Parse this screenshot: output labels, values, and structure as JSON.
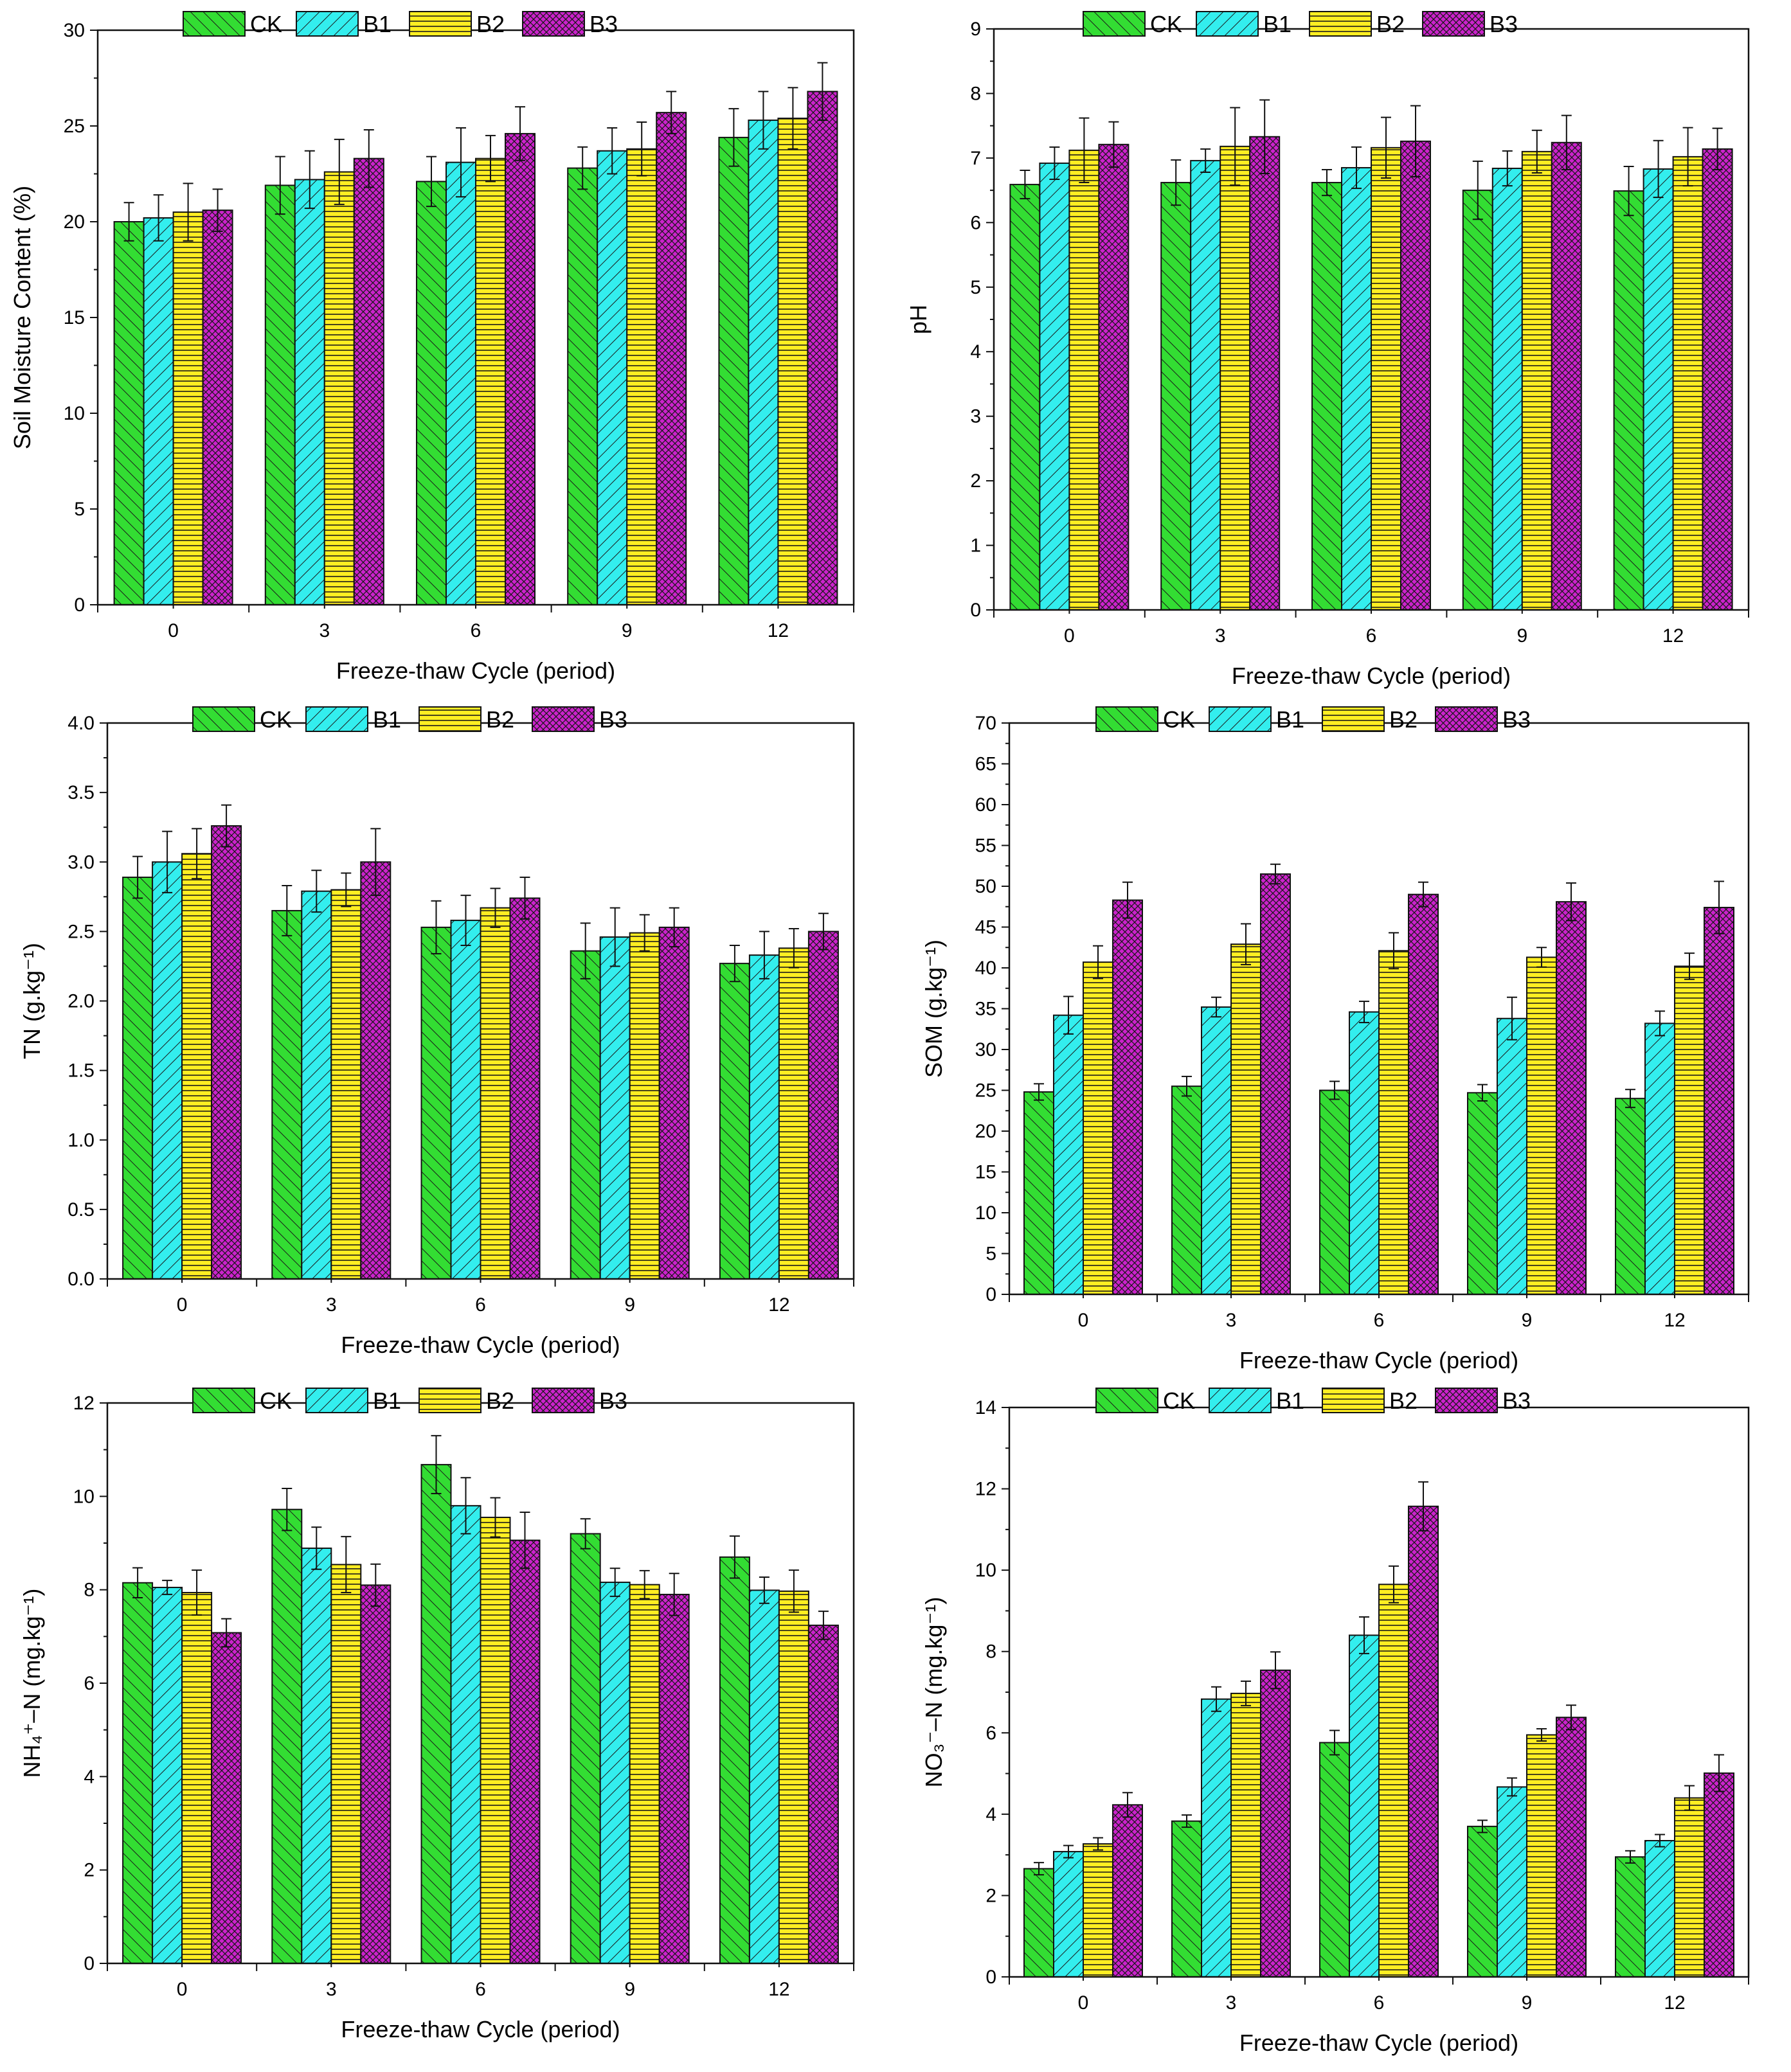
{
  "colors": {
    "CK": "#33dd33",
    "B1": "#33eeee",
    "B2": "#ffee22",
    "B3": "#cc22cc"
  },
  "chart_data": [
    {
      "type": "bar",
      "categories": [
        "0",
        "3",
        "6",
        "9",
        "12"
      ],
      "xlabel": "Freeze-thaw Cycle (period)",
      "ylabel": "Soil Moisture Content (%)",
      "ylim": [
        0,
        30
      ],
      "yticks": [
        "0",
        "5",
        "10",
        "15",
        "20",
        "25",
        "30"
      ],
      "legend": [
        "CK",
        "B1",
        "B2",
        "B3"
      ],
      "series": [
        {
          "name": "CK",
          "values": [
            20.0,
            21.9,
            22.1,
            22.8,
            24.4
          ],
          "errors": [
            1.0,
            1.5,
            1.3,
            1.1,
            1.5
          ]
        },
        {
          "name": "B1",
          "values": [
            20.2,
            22.2,
            23.1,
            23.7,
            25.3
          ],
          "errors": [
            1.2,
            1.5,
            1.8,
            1.2,
            1.5
          ]
        },
        {
          "name": "B2",
          "values": [
            20.5,
            22.6,
            23.3,
            23.8,
            25.4
          ],
          "errors": [
            1.5,
            1.7,
            1.2,
            1.4,
            1.6
          ]
        },
        {
          "name": "B3",
          "values": [
            20.6,
            23.3,
            24.6,
            25.7,
            26.8
          ],
          "errors": [
            1.1,
            1.5,
            1.4,
            1.1,
            1.5
          ]
        }
      ]
    },
    {
      "type": "bar",
      "categories": [
        "0",
        "3",
        "6",
        "9",
        "12"
      ],
      "xlabel": "Freeze-thaw Cycle (period)",
      "ylabel": "pH",
      "ylim": [
        0,
        9
      ],
      "yticks": [
        "0",
        "1",
        "2",
        "3",
        "4",
        "5",
        "6",
        "7",
        "8",
        "9"
      ],
      "legend": [
        "CK",
        "B1",
        "B2",
        "B3"
      ],
      "series": [
        {
          "name": "CK",
          "values": [
            6.59,
            6.62,
            6.62,
            6.5,
            6.49
          ],
          "errors": [
            0.22,
            0.35,
            0.2,
            0.45,
            0.38
          ]
        },
        {
          "name": "B1",
          "values": [
            6.92,
            6.96,
            6.85,
            6.84,
            6.83
          ],
          "errors": [
            0.25,
            0.18,
            0.32,
            0.27,
            0.44
          ]
        },
        {
          "name": "B2",
          "values": [
            7.12,
            7.18,
            7.16,
            7.1,
            7.02
          ],
          "errors": [
            0.5,
            0.6,
            0.47,
            0.33,
            0.45
          ]
        },
        {
          "name": "B3",
          "values": [
            7.21,
            7.33,
            7.26,
            7.24,
            7.14
          ],
          "errors": [
            0.35,
            0.57,
            0.55,
            0.42,
            0.32
          ]
        }
      ]
    },
    {
      "type": "bar",
      "categories": [
        "0",
        "3",
        "6",
        "9",
        "12"
      ],
      "xlabel": "Freeze-thaw Cycle (period)",
      "ylabel": "TN (g.kg⁻¹)",
      "ylim": [
        0,
        4
      ],
      "yticks": [
        "0.0",
        "0.5",
        "1.0",
        "1.5",
        "2.0",
        "2.5",
        "3.0",
        "3.5",
        "4.0"
      ],
      "legend": [
        "CK",
        "B1",
        "B2",
        "B3"
      ],
      "series": [
        {
          "name": "CK",
          "values": [
            2.89,
            2.65,
            2.53,
            2.36,
            2.27
          ],
          "errors": [
            0.15,
            0.18,
            0.19,
            0.2,
            0.13
          ]
        },
        {
          "name": "B1",
          "values": [
            3.0,
            2.79,
            2.58,
            2.46,
            2.33
          ],
          "errors": [
            0.22,
            0.15,
            0.18,
            0.21,
            0.17
          ]
        },
        {
          "name": "B2",
          "values": [
            3.06,
            2.8,
            2.67,
            2.49,
            2.38
          ],
          "errors": [
            0.18,
            0.12,
            0.14,
            0.13,
            0.14
          ]
        },
        {
          "name": "B3",
          "values": [
            3.26,
            3.0,
            2.74,
            2.53,
            2.5
          ],
          "errors": [
            0.15,
            0.24,
            0.15,
            0.14,
            0.13
          ]
        }
      ]
    },
    {
      "type": "bar",
      "categories": [
        "0",
        "3",
        "6",
        "9",
        "12"
      ],
      "xlabel": "Freeze-thaw Cycle (period)",
      "ylabel": "SOM (g.kg⁻¹)",
      "ylim": [
        0,
        70
      ],
      "yticks": [
        "0",
        "5",
        "10",
        "15",
        "20",
        "25",
        "30",
        "35",
        "40",
        "45",
        "50",
        "55",
        "60",
        "65",
        "70"
      ],
      "legend": [
        "CK",
        "B1",
        "B2",
        "B3"
      ],
      "series": [
        {
          "name": "CK",
          "values": [
            24.8,
            25.5,
            25.0,
            24.7,
            24.0
          ],
          "errors": [
            1.0,
            1.2,
            1.1,
            1.0,
            1.1
          ]
        },
        {
          "name": "B1",
          "values": [
            34.2,
            35.2,
            34.6,
            33.8,
            33.2
          ],
          "errors": [
            2.3,
            1.2,
            1.3,
            2.6,
            1.5
          ]
        },
        {
          "name": "B2",
          "values": [
            40.7,
            42.9,
            42.1,
            41.3,
            40.2
          ],
          "errors": [
            2.0,
            2.5,
            2.2,
            1.2,
            1.6
          ]
        },
        {
          "name": "B3",
          "values": [
            48.3,
            51.5,
            49.0,
            48.1,
            47.4
          ],
          "errors": [
            2.2,
            1.2,
            1.5,
            2.3,
            3.2
          ]
        }
      ]
    },
    {
      "type": "bar",
      "categories": [
        "0",
        "3",
        "6",
        "9",
        "12"
      ],
      "xlabel": "Freeze-thaw Cycle (period)",
      "ylabel": "NH₄⁺–N (mg.kg⁻¹)",
      "ylim": [
        0,
        12
      ],
      "yticks": [
        "0",
        "2",
        "4",
        "6",
        "8",
        "10",
        "12"
      ],
      "legend": [
        "CK",
        "B1",
        "B2",
        "B3"
      ],
      "series": [
        {
          "name": "CK",
          "values": [
            8.15,
            9.72,
            10.68,
            9.2,
            8.7
          ],
          "errors": [
            0.32,
            0.45,
            0.62,
            0.32,
            0.45
          ]
        },
        {
          "name": "B1",
          "values": [
            8.05,
            8.89,
            9.8,
            8.16,
            7.99
          ],
          "errors": [
            0.15,
            0.45,
            0.6,
            0.3,
            0.28
          ]
        },
        {
          "name": "B2",
          "values": [
            7.94,
            8.54,
            9.55,
            8.11,
            7.97
          ],
          "errors": [
            0.48,
            0.6,
            0.42,
            0.3,
            0.45
          ]
        },
        {
          "name": "B3",
          "values": [
            7.08,
            8.1,
            9.06,
            7.9,
            7.24
          ],
          "errors": [
            0.3,
            0.45,
            0.6,
            0.45,
            0.3
          ]
        }
      ]
    },
    {
      "type": "bar",
      "categories": [
        "0",
        "3",
        "6",
        "9",
        "12"
      ],
      "xlabel": "Freeze-thaw Cycle (period)",
      "ylabel": "NO₃⁻–N (mg.kg⁻¹)",
      "ylim": [
        0,
        14
      ],
      "yticks": [
        "0",
        "2",
        "4",
        "6",
        "8",
        "10",
        "12",
        "14"
      ],
      "legend": [
        "CK",
        "B1",
        "B2",
        "B3"
      ],
      "series": [
        {
          "name": "CK",
          "values": [
            2.66,
            3.83,
            5.76,
            3.7,
            2.95
          ],
          "errors": [
            0.15,
            0.15,
            0.3,
            0.15,
            0.15
          ]
        },
        {
          "name": "B1",
          "values": [
            3.08,
            6.83,
            8.4,
            4.67,
            3.35
          ],
          "errors": [
            0.15,
            0.3,
            0.45,
            0.22,
            0.15
          ]
        },
        {
          "name": "B2",
          "values": [
            3.27,
            6.97,
            9.65,
            5.95,
            4.4
          ],
          "errors": [
            0.15,
            0.3,
            0.45,
            0.15,
            0.3
          ]
        },
        {
          "name": "B3",
          "values": [
            4.23,
            7.54,
            11.57,
            6.38,
            5.01
          ],
          "errors": [
            0.3,
            0.45,
            0.6,
            0.3,
            0.45
          ]
        }
      ]
    }
  ]
}
